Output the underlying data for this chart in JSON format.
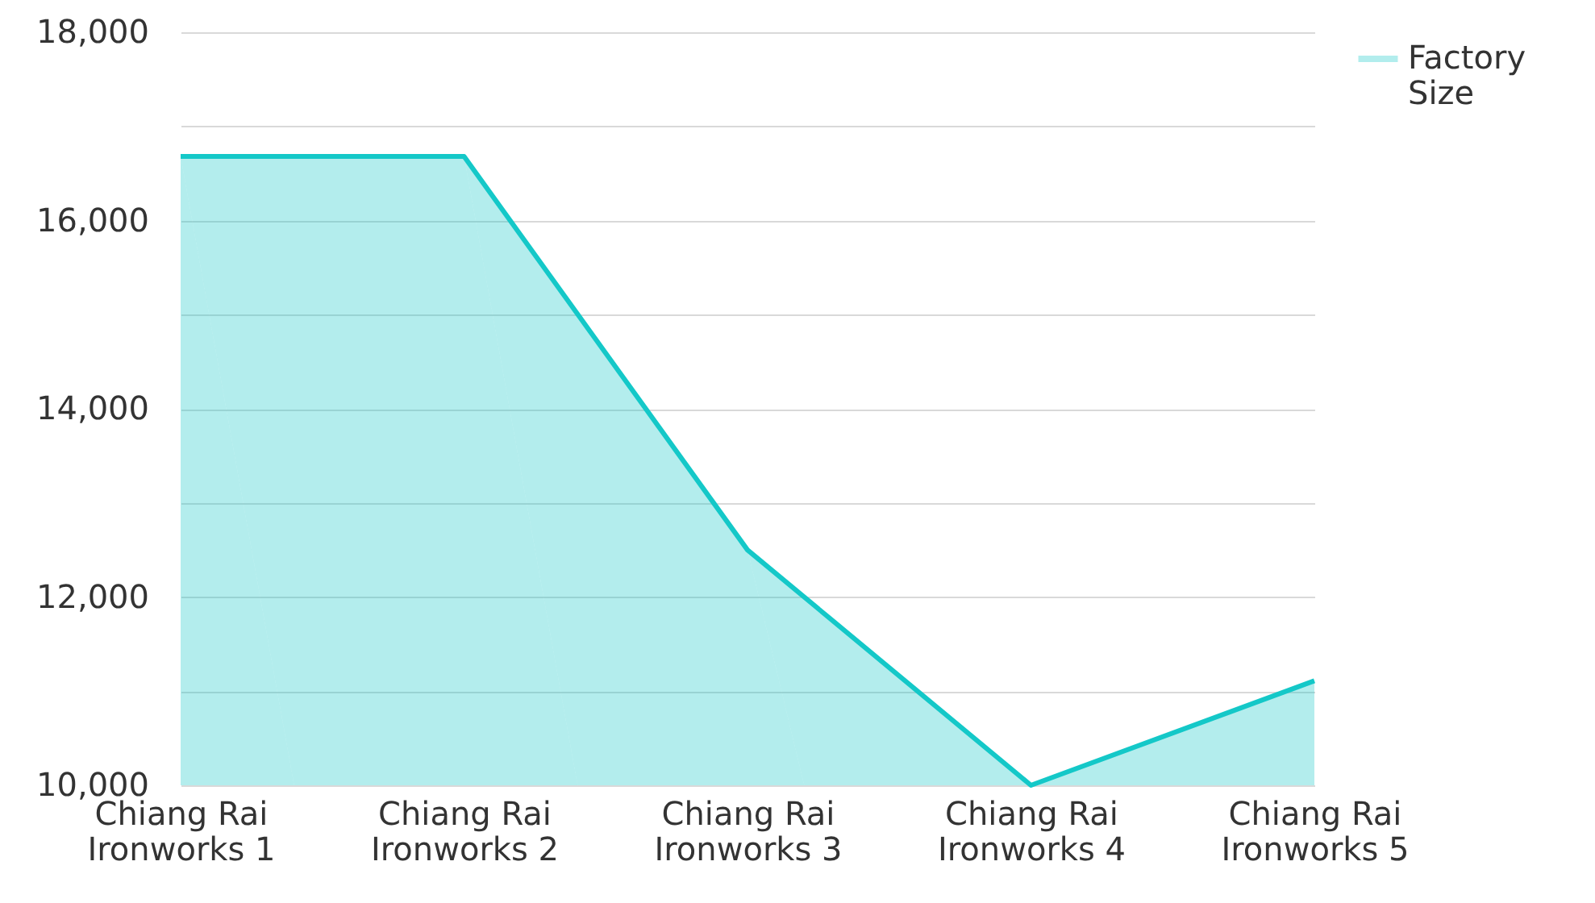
{
  "chart_data": {
    "type": "area",
    "categories": [
      "Chiang Rai Ironworks 1",
      "Chiang Rai Ironworks 2",
      "Chiang Rai Ironworks 3",
      "Chiang Rai Ironworks 4",
      "Chiang Rai Ironworks 5"
    ],
    "series": [
      {
        "name": "Factory Size",
        "color": "#14c8c8",
        "values": [
          16680,
          16680,
          12500,
          10000,
          11110
        ]
      }
    ],
    "ylim": [
      10000,
      18000
    ],
    "yticks": [
      {
        "value": 10000,
        "label": "10,000"
      },
      {
        "value": 11000,
        "label": null
      },
      {
        "value": 12000,
        "label": "12,000"
      },
      {
        "value": 13000,
        "label": null
      },
      {
        "value": 14000,
        "label": "14,000"
      },
      {
        "value": 15000,
        "label": null
      },
      {
        "value": 16000,
        "label": "16,000"
      },
      {
        "value": 17000,
        "label": null
      },
      {
        "value": 18000,
        "label": "18,000"
      }
    ],
    "grid": "y",
    "legend": "top right"
  }
}
